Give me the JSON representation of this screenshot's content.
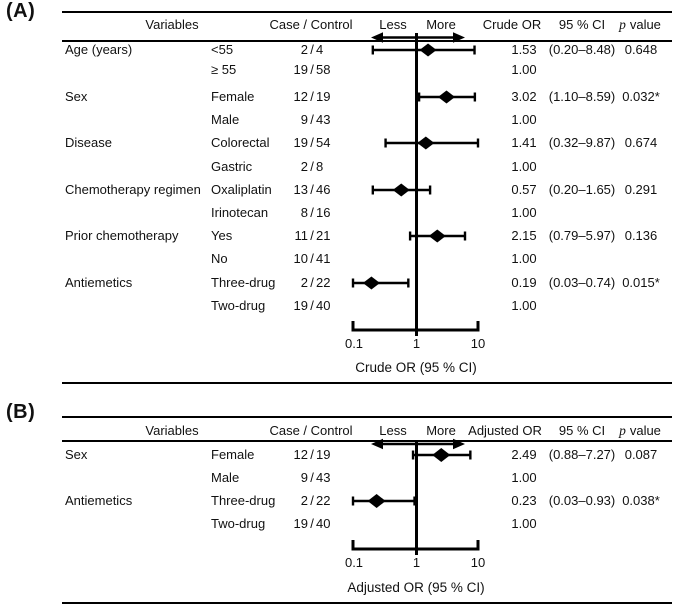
{
  "figure": {
    "background": "#ffffff",
    "ink": "#000000"
  },
  "chart_data": [
    {
      "type": "forest",
      "panel_label": "(A)",
      "headers": {
        "variables": "Variables",
        "case_control": "Case / Control",
        "less": "Less",
        "more": "More",
        "or": "Crude OR",
        "ci": "95 % CI",
        "p": "p",
        "p_word": "value"
      },
      "axis": {
        "scale": "log",
        "min": 0.1,
        "max": 10,
        "refline": 1,
        "ticks": [
          "0.1",
          "1",
          "10"
        ],
        "tick_values": [
          0.1,
          1,
          10
        ],
        "label": "Crude OR (95 % CI)"
      },
      "rows": [
        {
          "group": "Age (years)",
          "level": "<55",
          "case": "2",
          "control": "4",
          "or": 1.53,
          "ci_lo": 0.2,
          "ci_hi": 8.48,
          "or_text": "1.53",
          "ci_text": "(0.20–8.48)",
          "p_text": "0.648"
        },
        {
          "group": "",
          "level": "≥ 55",
          "case": "19",
          "control": "58",
          "or_text": "1.00",
          "ci_text": "",
          "p_text": ""
        },
        {
          "group": "Sex",
          "level": "Female",
          "case": "12",
          "control": "19",
          "or": 3.02,
          "ci_lo": 1.1,
          "ci_hi": 8.59,
          "or_text": "3.02",
          "ci_text": "(1.10–8.59)",
          "p_text": "0.032*"
        },
        {
          "group": "",
          "level": "Male",
          "case": "9",
          "control": "43",
          "or_text": "1.00",
          "ci_text": "",
          "p_text": ""
        },
        {
          "group": "Disease",
          "level": "Colorectal",
          "case": "19",
          "control": "54",
          "or": 1.41,
          "ci_lo": 0.32,
          "ci_hi": 9.87,
          "or_text": "1.41",
          "ci_text": "(0.32–9.87)",
          "p_text": "0.674"
        },
        {
          "group": "",
          "level": "Gastric",
          "case": "2",
          "control": "8",
          "or_text": "1.00",
          "ci_text": "",
          "p_text": ""
        },
        {
          "group": "Chemotherapy regimen",
          "level": "Oxaliplatin",
          "case": "13",
          "control": "46",
          "or": 0.57,
          "ci_lo": 0.2,
          "ci_hi": 1.65,
          "or_text": "0.57",
          "ci_text": "(0.20–1.65)",
          "p_text": "0.291"
        },
        {
          "group": "",
          "level": "Irinotecan",
          "case": "8",
          "control": "16",
          "or_text": "1.00",
          "ci_text": "",
          "p_text": ""
        },
        {
          "group": "Prior chemotherapy",
          "level": "Yes",
          "case": "11",
          "control": "21",
          "or": 2.15,
          "ci_lo": 0.79,
          "ci_hi": 5.97,
          "or_text": "2.15",
          "ci_text": "(0.79–5.97)",
          "p_text": "0.136"
        },
        {
          "group": "",
          "level": "No",
          "case": "10",
          "control": "41",
          "or_text": "1.00",
          "ci_text": "",
          "p_text": ""
        },
        {
          "group": "Antiemetics",
          "level": "Three-drug",
          "case": "2",
          "control": "22",
          "or": 0.19,
          "ci_lo": 0.03,
          "ci_hi": 0.74,
          "or_text": "0.19",
          "ci_text": "(0.03–0.74)",
          "p_text": "0.015*"
        },
        {
          "group": "",
          "level": "Two-drug",
          "case": "19",
          "control": "40",
          "or_text": "1.00",
          "ci_text": "",
          "p_text": ""
        }
      ]
    },
    {
      "type": "forest",
      "panel_label": "(B)",
      "headers": {
        "variables": "Variables",
        "case_control": "Case / Control",
        "less": "Less",
        "more": "More",
        "or": "Adjusted OR",
        "ci": "95 % CI",
        "p": "p",
        "p_word": "value"
      },
      "axis": {
        "scale": "log",
        "min": 0.1,
        "max": 10,
        "refline": 1,
        "ticks": [
          "0.1",
          "1",
          "10"
        ],
        "tick_values": [
          0.1,
          1,
          10
        ],
        "label": "Adjusted OR (95 % CI)"
      },
      "rows": [
        {
          "group": "Sex",
          "level": "Female",
          "case": "12",
          "control": "19",
          "or": 2.49,
          "ci_lo": 0.88,
          "ci_hi": 7.27,
          "or_text": "2.49",
          "ci_text": "(0.88–7.27)",
          "p_text": "0.087"
        },
        {
          "group": "",
          "level": "Male",
          "case": "9",
          "control": "43",
          "or_text": "1.00",
          "ci_text": "",
          "p_text": ""
        },
        {
          "group": "Antiemetics",
          "level": "Three-drug",
          "case": "2",
          "control": "22",
          "or": 0.23,
          "ci_lo": 0.03,
          "ci_hi": 0.93,
          "or_text": "0.23",
          "ci_text": "(0.03–0.93)",
          "p_text": "0.038*"
        },
        {
          "group": "",
          "level": "Two-drug",
          "case": "19",
          "control": "40",
          "or_text": "1.00",
          "ci_text": "",
          "p_text": ""
        }
      ]
    }
  ]
}
